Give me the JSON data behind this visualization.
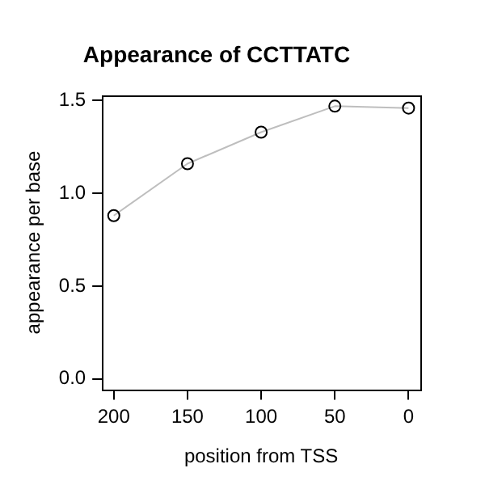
{
  "chart_data": {
    "type": "line",
    "title": "Appearance of CCTTATC",
    "xlabel": "position from TSS",
    "ylabel": "appearance per base",
    "x": [
      200,
      150,
      100,
      50,
      0
    ],
    "series": [
      {
        "color": "#bebebe",
        "values": [
          0.88,
          1.16,
          1.33,
          1.47,
          1.46
        ]
      }
    ],
    "xlim": [
      208,
      -8
    ],
    "xticks": [
      200,
      150,
      100,
      50,
      0
    ],
    "ylim": [
      -0.06,
      1.53
    ],
    "yticks": [
      {
        "value": 0,
        "label": "0.0"
      },
      {
        "value": 0.5,
        "label": "0.5"
      },
      {
        "value": 1,
        "label": "1.0"
      },
      {
        "value": 1.5,
        "label": "1.5"
      }
    ],
    "grid": false,
    "legend": false,
    "marker": "circle",
    "line_style": "solid"
  }
}
